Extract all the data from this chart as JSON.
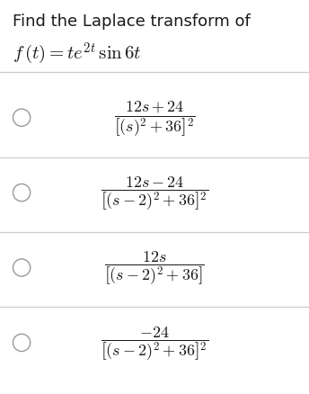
{
  "title_line1": "Find the Laplace transform of",
  "title_line2": "$f\\,(t) = te^{2t} \\sin 6t$",
  "background_color": "#ffffff",
  "text_color": "#1a1a1a",
  "circle_color": "#999999",
  "divider_color": "#cccccc",
  "options": [
    {
      "fraction": "$\\dfrac{12s+24}{\\left[(s)^2+36\\right]^2}$"
    },
    {
      "fraction": "$\\dfrac{12s-24}{\\left[(s-2)^2+36\\right]^2}$"
    },
    {
      "fraction": "$\\dfrac{12s}{\\left[(s-2)^2+36\\right]}$"
    },
    {
      "fraction": "$\\dfrac{-24}{\\left[(s-2)^2+36\\right]^2}$"
    }
  ],
  "figwidth": 3.44,
  "figheight": 4.39,
  "dpi": 100,
  "title_fontsize": 13,
  "math_fontsize": 14,
  "option_fontsize": 13
}
